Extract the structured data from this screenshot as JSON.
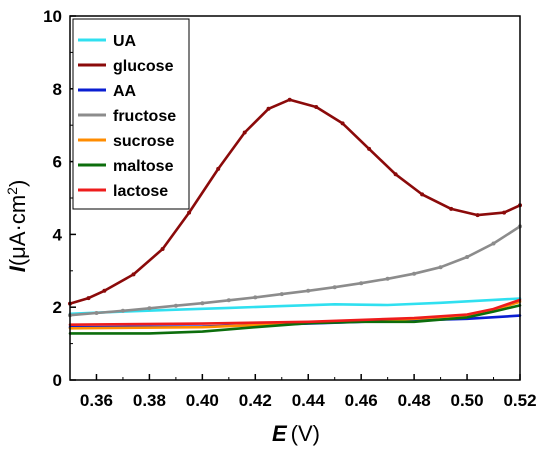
{
  "chart_data": {
    "type": "line",
    "title": "",
    "xlabel": {
      "symbol": "E",
      "unit": "(V)"
    },
    "ylabel": {
      "symbol": "I",
      "unit": "(μA·cm",
      "unit_sup": "2",
      "unit_close": ")"
    },
    "xlim": [
      0.35,
      0.52
    ],
    "ylim": [
      0,
      10
    ],
    "xticks": [
      "0.36",
      "0.38",
      "0.40",
      "0.42",
      "0.44",
      "0.46",
      "0.48",
      "0.50",
      "0.52"
    ],
    "yticks": [
      "0",
      "2",
      "4",
      "6",
      "8",
      "10"
    ],
    "legend_position": "top-left",
    "grid": false,
    "series": [
      {
        "name": "UA",
        "color": "#30e0f0",
        "marker": false,
        "x": [
          0.35,
          0.37,
          0.39,
          0.41,
          0.43,
          0.45,
          0.46,
          0.47,
          0.49,
          0.51,
          0.52
        ],
        "y": [
          1.82,
          1.88,
          1.93,
          1.98,
          2.03,
          2.08,
          2.07,
          2.06,
          2.12,
          2.2,
          2.24
        ]
      },
      {
        "name": "glucose",
        "color": "#8b0a0a",
        "marker": true,
        "x": [
          0.35,
          0.357,
          0.363,
          0.374,
          0.385,
          0.395,
          0.406,
          0.416,
          0.425,
          0.433,
          0.443,
          0.453,
          0.463,
          0.473,
          0.483,
          0.494,
          0.504,
          0.514,
          0.52
        ],
        "y": [
          2.1,
          2.25,
          2.45,
          2.9,
          3.6,
          4.6,
          5.8,
          6.8,
          7.45,
          7.7,
          7.5,
          7.05,
          6.35,
          5.65,
          5.1,
          4.7,
          4.53,
          4.6,
          4.8
        ]
      },
      {
        "name": "AA",
        "color": "#0a1ed2",
        "marker": false,
        "x": [
          0.35,
          0.4,
          0.44,
          0.46,
          0.48,
          0.5,
          0.52
        ],
        "y": [
          1.45,
          1.47,
          1.55,
          1.6,
          1.64,
          1.68,
          1.77
        ]
      },
      {
        "name": "fructose",
        "color": "#8c8c8c",
        "marker": true,
        "x": [
          0.35,
          0.36,
          0.37,
          0.38,
          0.39,
          0.4,
          0.41,
          0.42,
          0.43,
          0.44,
          0.45,
          0.46,
          0.47,
          0.48,
          0.49,
          0.5,
          0.51,
          0.52
        ],
        "y": [
          1.78,
          1.84,
          1.9,
          1.97,
          2.04,
          2.11,
          2.19,
          2.27,
          2.36,
          2.45,
          2.55,
          2.66,
          2.78,
          2.92,
          3.1,
          3.38,
          3.75,
          4.22
        ]
      },
      {
        "name": "sucrose",
        "color": "#ff8c00",
        "marker": false,
        "x": [
          0.35,
          0.4,
          0.44,
          0.46,
          0.48,
          0.5,
          0.51,
          0.52
        ],
        "y": [
          1.42,
          1.45,
          1.57,
          1.62,
          1.68,
          1.78,
          1.92,
          2.15
        ]
      },
      {
        "name": "maltose",
        "color": "#0c6e0c",
        "marker": false,
        "x": [
          0.35,
          0.38,
          0.4,
          0.42,
          0.44,
          0.46,
          0.48,
          0.5,
          0.51,
          0.52
        ],
        "y": [
          1.28,
          1.28,
          1.33,
          1.45,
          1.56,
          1.6,
          1.6,
          1.72,
          1.88,
          2.05
        ]
      },
      {
        "name": "lactose",
        "color": "#ee1c1c",
        "marker": false,
        "x": [
          0.35,
          0.4,
          0.44,
          0.46,
          0.48,
          0.5,
          0.51,
          0.52
        ],
        "y": [
          1.52,
          1.55,
          1.6,
          1.65,
          1.7,
          1.8,
          1.95,
          2.2
        ]
      }
    ]
  }
}
